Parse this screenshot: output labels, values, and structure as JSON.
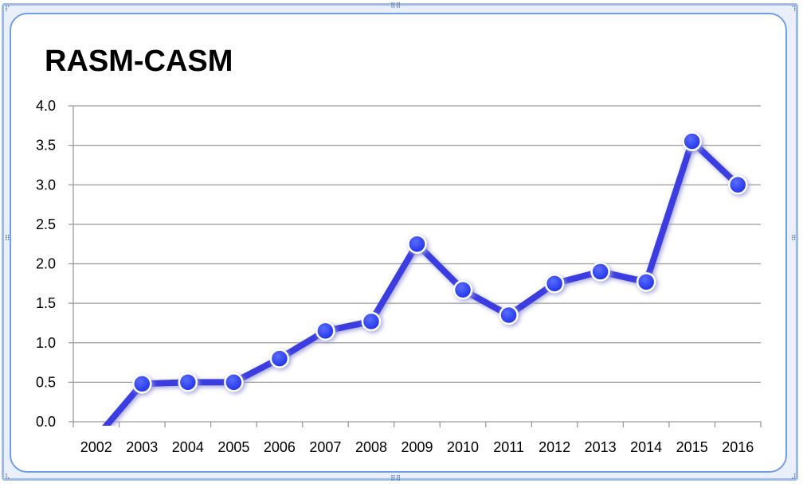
{
  "chart_data": {
    "type": "line",
    "title": "RASM-CASM",
    "xlabel": "",
    "ylabel": "",
    "categories": [
      "2002",
      "2003",
      "2004",
      "2005",
      "2006",
      "2007",
      "2008",
      "2009",
      "2010",
      "2011",
      "2012",
      "2013",
      "2014",
      "2015",
      "2016"
    ],
    "series": [
      {
        "values": [
          -0.2,
          0.48,
          0.5,
          0.5,
          0.8,
          1.15,
          1.27,
          2.25,
          1.67,
          1.35,
          1.75,
          1.9,
          1.77,
          3.55,
          3.0
        ]
      }
    ],
    "ylim": [
      0,
      4.0
    ],
    "yticks": [
      "0.0",
      "0.5",
      "1.0",
      "1.5",
      "2.0",
      "2.5",
      "3.0",
      "3.5",
      "4.0"
    ],
    "grid": true,
    "legend": "none",
    "colors": {
      "line": "#3a3ee0",
      "marker": "#2f44f0",
      "grid": "#9a9a9a",
      "frame": "#6f9ee6"
    }
  }
}
